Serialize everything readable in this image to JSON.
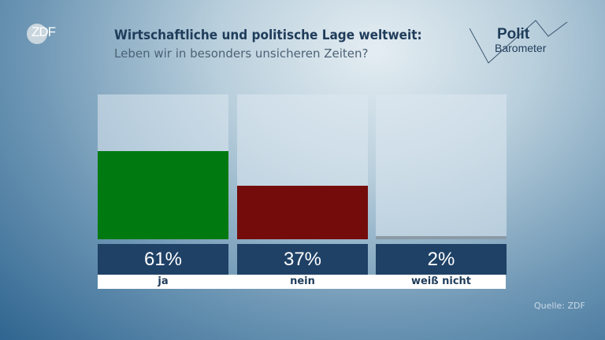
{
  "broadcaster": "ZDF",
  "program_logo": {
    "line1": "Polit",
    "line2": "Barometer"
  },
  "chart_data": {
    "type": "bar",
    "title": "Wirtschaftliche und politische Lage weltweit:",
    "subtitle": "Leben wir in besonders unsicheren Zeiten?",
    "categories": [
      "ja",
      "nein",
      "weiß nicht"
    ],
    "values": [
      61,
      37,
      2
    ],
    "value_labels": [
      "61%",
      "37%",
      "2%"
    ],
    "ylim": [
      0,
      100
    ],
    "colors": [
      "#007a10",
      "#740c0c",
      "#8a9aa6"
    ],
    "grid": false,
    "source": "Quelle: ZDF"
  }
}
